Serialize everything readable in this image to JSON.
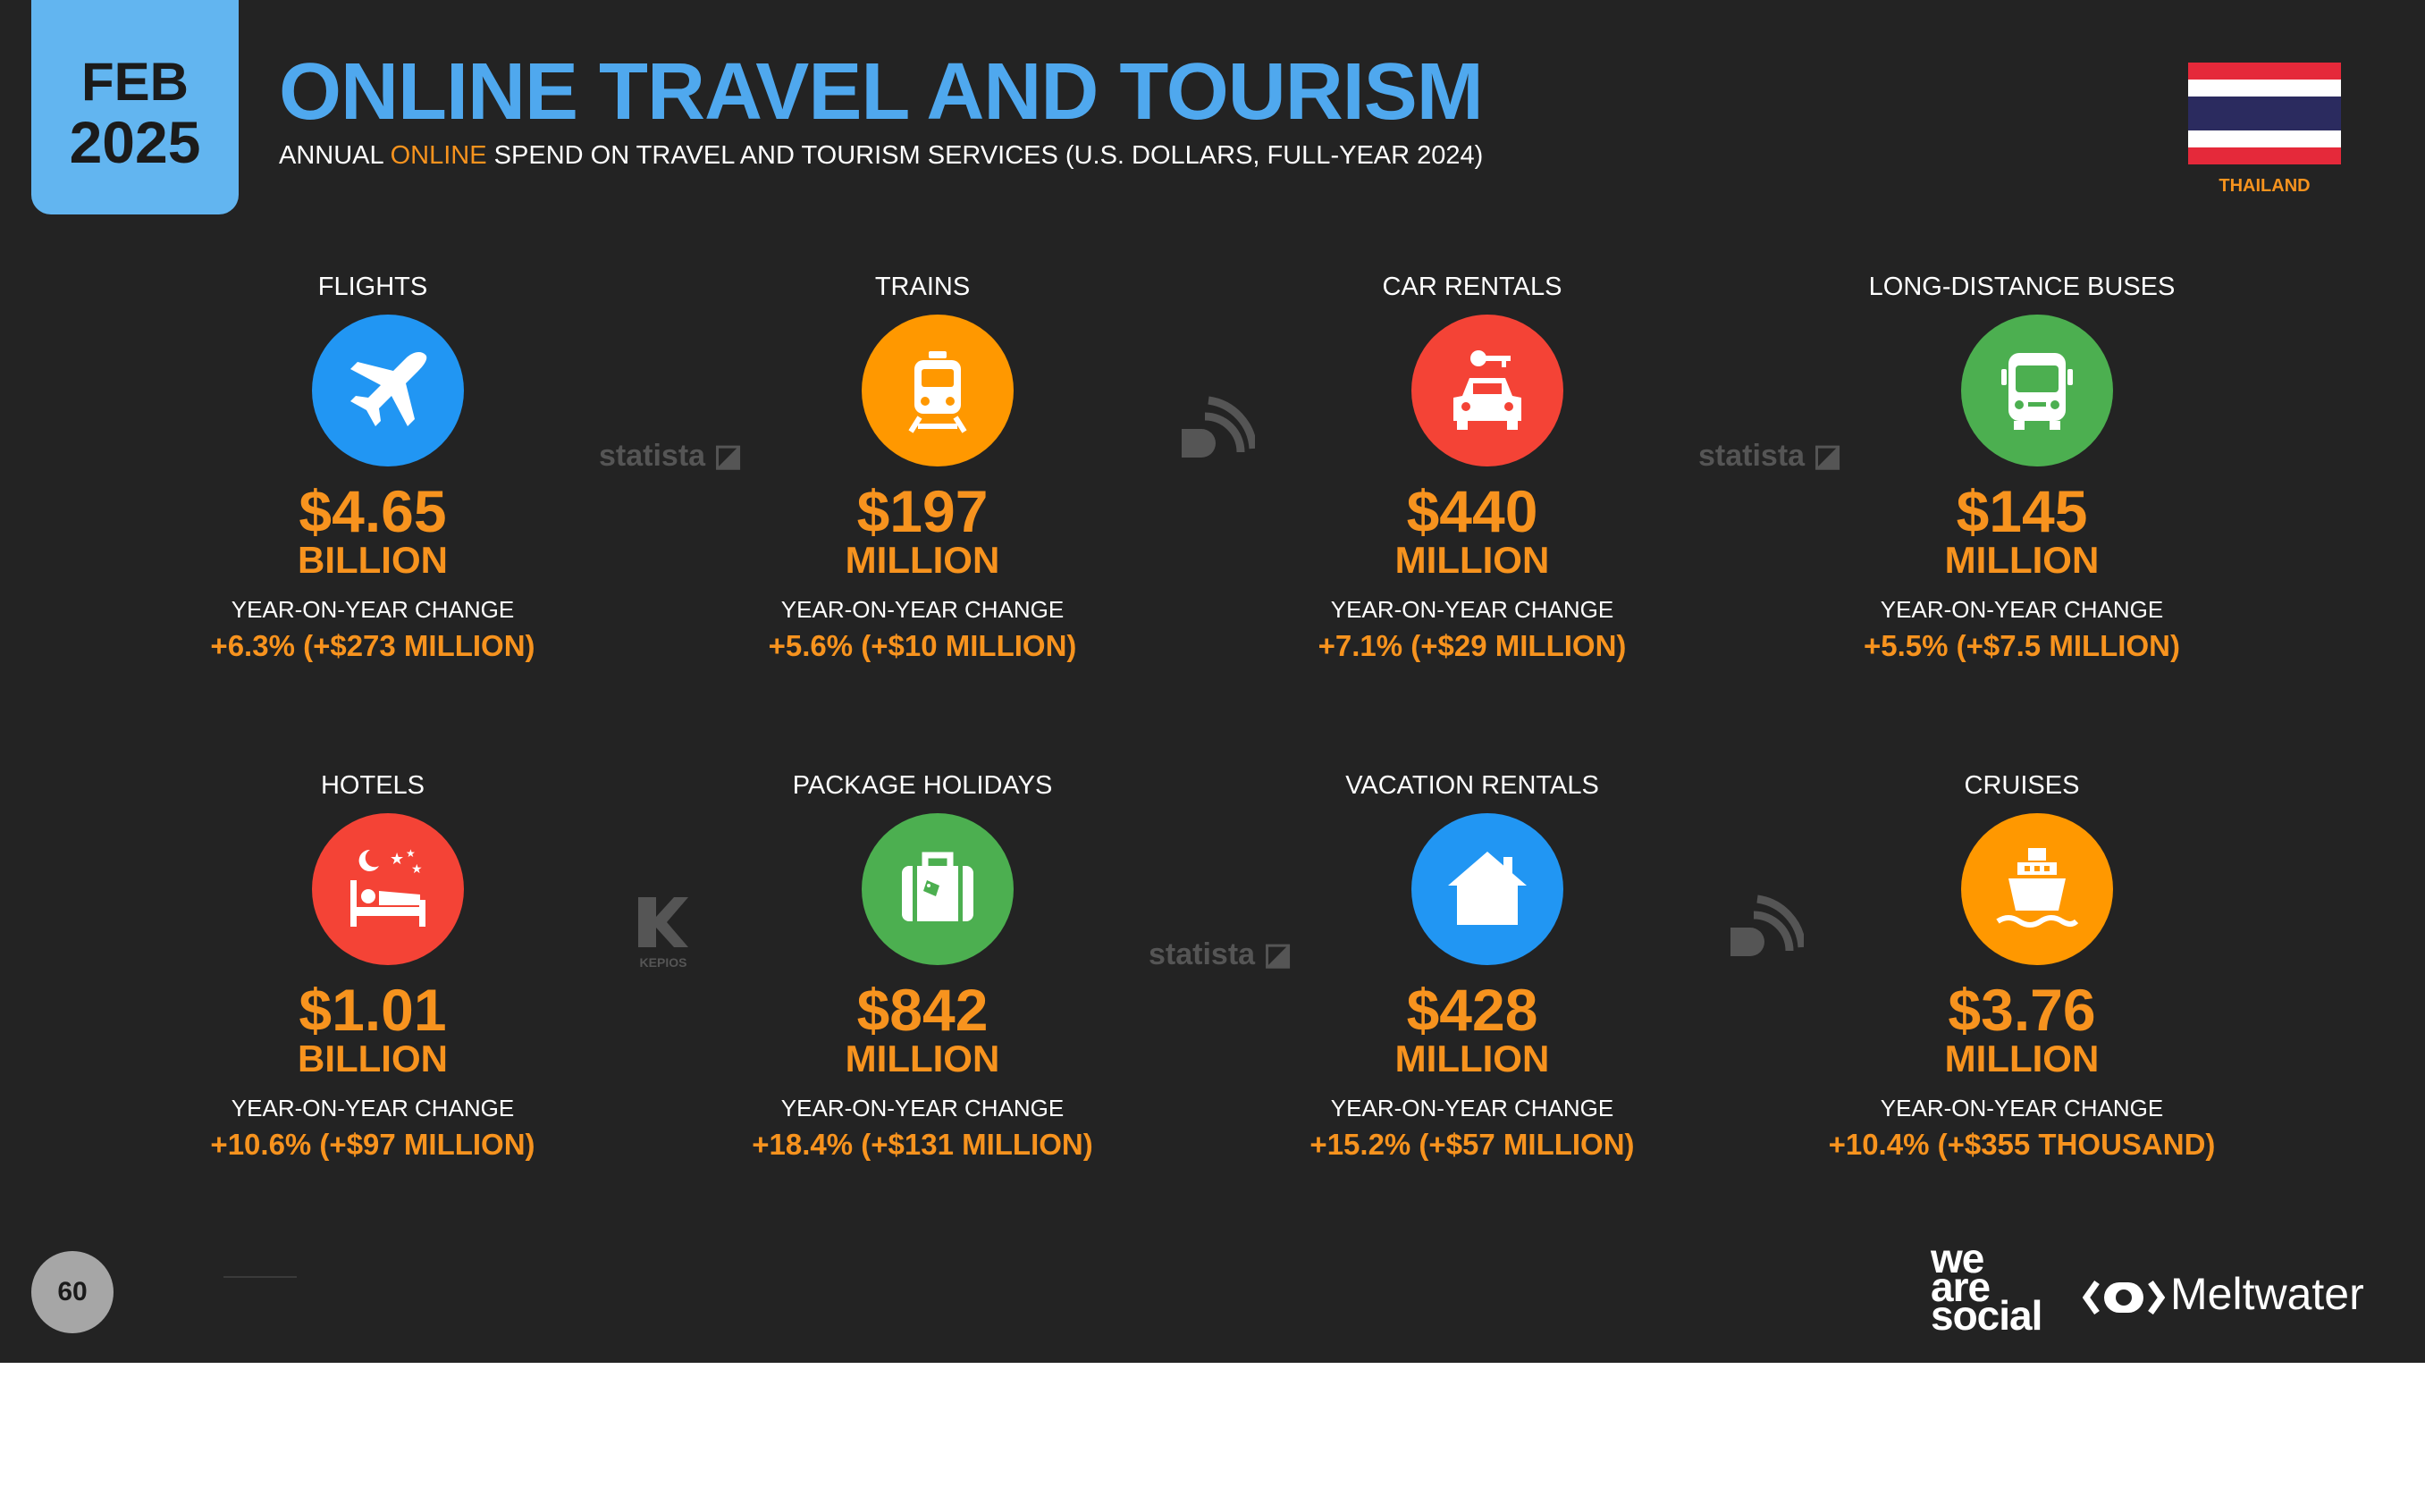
{
  "header": {
    "date_month": "FEB",
    "date_year": "2025",
    "title": "ONLINE TRAVEL AND TOURISM",
    "subtitle_pre": "ANNUAL ",
    "subtitle_highlight": "ONLINE",
    "subtitle_post": " SPEND ON TRAVEL AND TOURISM SERVICES (U.S. DOLLARS, FULL-YEAR 2024)",
    "country": "THAILAND"
  },
  "colors": {
    "accent_orange": "#f7931e",
    "title_blue": "#4fa8ee",
    "background": "#232323",
    "flag_red": "#e5293a",
    "flag_blue": "#2b2b5f"
  },
  "yoy_label": "YEAR-ON-YEAR CHANGE",
  "tiles": [
    {
      "category": "FLIGHTS",
      "icon": "airplane-icon",
      "color": "#2196f3",
      "value": "$4.65",
      "unit": "BILLION",
      "yoy": "+6.3% (+$273 MILLION)"
    },
    {
      "category": "TRAINS",
      "icon": "train-icon",
      "color": "#ff9800",
      "value": "$197",
      "unit": "MILLION",
      "yoy": "+5.6% (+$10 MILLION)"
    },
    {
      "category": "CAR RENTALS",
      "icon": "car-key-icon",
      "color": "#f44336",
      "value": "$440",
      "unit": "MILLION",
      "yoy": "+7.1% (+$29 MILLION)"
    },
    {
      "category": "LONG-DISTANCE BUSES",
      "icon": "bus-icon",
      "color": "#4caf50",
      "value": "$145",
      "unit": "MILLION",
      "yoy": "+5.5% (+$7.5 MILLION)"
    },
    {
      "category": "HOTELS",
      "icon": "bed-icon",
      "color": "#f44336",
      "value": "$1.01",
      "unit": "BILLION",
      "yoy": "+10.6% (+$97 MILLION)"
    },
    {
      "category": "PACKAGE HOLIDAYS",
      "icon": "suitcase-icon",
      "color": "#4caf50",
      "value": "$842",
      "unit": "MILLION",
      "yoy": "+18.4% (+$131 MILLION)"
    },
    {
      "category": "VACATION RENTALS",
      "icon": "house-icon",
      "color": "#2196f3",
      "value": "$428",
      "unit": "MILLION",
      "yoy": "+15.2% (+$57 MILLION)"
    },
    {
      "category": "CRUISES",
      "icon": "ship-icon",
      "color": "#ff9800",
      "value": "$3.76",
      "unit": "MILLION",
      "yoy": "+10.4% (+$355 THOUSAND)"
    }
  ],
  "watermarks": {
    "statista": "statista",
    "kepios": "KEPIOS"
  },
  "footer": {
    "page_number": "60",
    "brand1_l1": "we",
    "brand1_l2": "are",
    "brand1_l3": "social",
    "brand2": "Meltwater"
  }
}
